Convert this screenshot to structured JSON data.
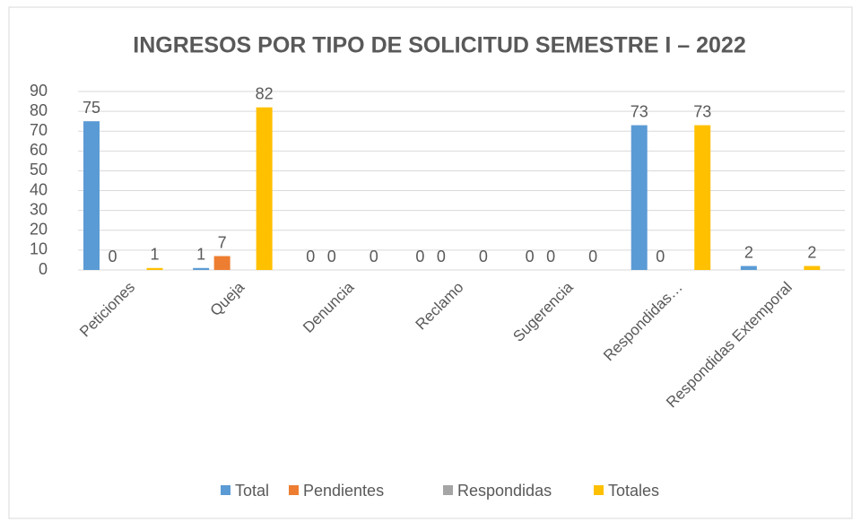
{
  "chart_data": {
    "type": "bar",
    "title": "INGRESOS POR TIPO DE SOLICITUD SEMESTRE I – 2022",
    "categories": [
      "Peticiones",
      "Queja",
      "Denuncia",
      "Reclamo",
      "Sugerencia",
      "Respondidas…",
      "Respondidas Extemporal"
    ],
    "series": [
      {
        "name": "Total",
        "color": "#5b9bd5",
        "values": [
          75,
          1,
          0,
          0,
          0,
          73,
          2
        ]
      },
      {
        "name": "Pendientes",
        "color": "#ed7d31",
        "values": [
          0,
          7,
          0,
          0,
          0,
          0,
          null
        ]
      },
      {
        "name": "Respondidas",
        "color": "#a5a5a5",
        "values": [
          null,
          null,
          null,
          null,
          null,
          null,
          null
        ]
      },
      {
        "name": "Totales",
        "color": "#ffc000",
        "values": [
          1,
          82,
          0,
          0,
          0,
          73,
          2
        ]
      }
    ],
    "ylim": [
      0,
      90
    ],
    "yticks": [
      0,
      10,
      20,
      30,
      40,
      50,
      60,
      70,
      80,
      90
    ],
    "grid": true,
    "legend": "bottom"
  }
}
